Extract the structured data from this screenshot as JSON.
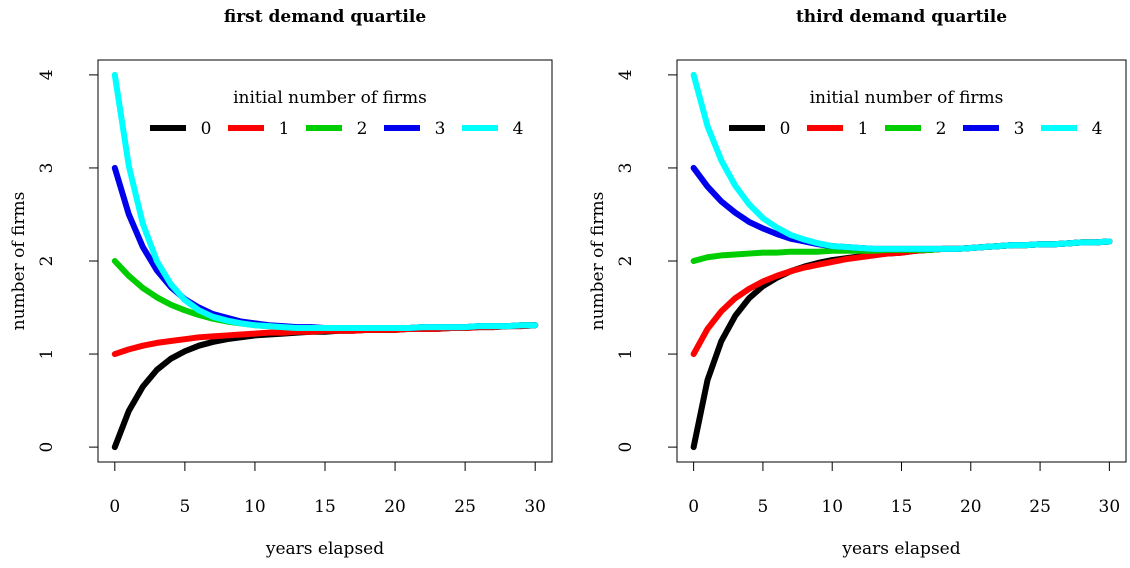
{
  "chart_data": [
    {
      "type": "line",
      "title": "first demand quartile",
      "xlabel": "years elapsed",
      "ylabel": "number of firms",
      "xlim": [
        0,
        30
      ],
      "ylim": [
        0,
        4
      ],
      "xticks": [
        0,
        5,
        10,
        15,
        20,
        25,
        30
      ],
      "yticks": [
        0,
        1,
        2,
        3,
        4
      ],
      "grid": false,
      "legend": {
        "title": "initial number of firms",
        "placement": "top",
        "orientation": "horizontal",
        "entries": [
          "0",
          "1",
          "2",
          "3",
          "4"
        ]
      },
      "x": [
        0,
        1,
        2,
        3,
        4,
        5,
        6,
        7,
        8,
        9,
        10,
        11,
        12,
        13,
        14,
        15,
        16,
        17,
        18,
        19,
        20,
        21,
        22,
        23,
        24,
        25,
        26,
        27,
        28,
        29,
        30
      ],
      "series": [
        {
          "name": "0",
          "color": "#000000",
          "values": [
            0,
            0.39,
            0.65,
            0.83,
            0.95,
            1.03,
            1.09,
            1.13,
            1.16,
            1.18,
            1.2,
            1.21,
            1.22,
            1.23,
            1.24,
            1.24,
            1.25,
            1.25,
            1.26,
            1.26,
            1.26,
            1.27,
            1.27,
            1.27,
            1.28,
            1.28,
            1.29,
            1.29,
            1.3,
            1.3,
            1.31
          ]
        },
        {
          "name": "1",
          "color": "#ff0000",
          "values": [
            1,
            1.05,
            1.09,
            1.12,
            1.14,
            1.16,
            1.18,
            1.19,
            1.2,
            1.21,
            1.22,
            1.23,
            1.23,
            1.24,
            1.24,
            1.25,
            1.25,
            1.25,
            1.26,
            1.26,
            1.26,
            1.27,
            1.27,
            1.27,
            1.28,
            1.28,
            1.29,
            1.29,
            1.3,
            1.3,
            1.31
          ]
        },
        {
          "name": "2",
          "color": "#00cd00",
          "values": [
            2,
            1.84,
            1.71,
            1.61,
            1.53,
            1.47,
            1.42,
            1.38,
            1.35,
            1.33,
            1.31,
            1.3,
            1.29,
            1.28,
            1.28,
            1.28,
            1.28,
            1.28,
            1.28,
            1.28,
            1.28,
            1.28,
            1.29,
            1.29,
            1.29,
            1.29,
            1.3,
            1.3,
            1.3,
            1.31,
            1.31
          ]
        },
        {
          "name": "3",
          "color": "#0000ee",
          "values": [
            3,
            2.5,
            2.15,
            1.9,
            1.72,
            1.59,
            1.5,
            1.43,
            1.39,
            1.35,
            1.33,
            1.31,
            1.3,
            1.29,
            1.29,
            1.28,
            1.28,
            1.28,
            1.28,
            1.28,
            1.28,
            1.28,
            1.29,
            1.29,
            1.29,
            1.29,
            1.3,
            1.3,
            1.3,
            1.31,
            1.31
          ]
        },
        {
          "name": "4",
          "color": "#00ffff",
          "values": [
            4,
            3.02,
            2.4,
            2.0,
            1.75,
            1.58,
            1.47,
            1.4,
            1.36,
            1.33,
            1.31,
            1.3,
            1.29,
            1.28,
            1.28,
            1.28,
            1.28,
            1.28,
            1.28,
            1.28,
            1.28,
            1.28,
            1.29,
            1.29,
            1.29,
            1.29,
            1.3,
            1.3,
            1.3,
            1.31,
            1.31
          ]
        }
      ]
    },
    {
      "type": "line",
      "title": "third demand quartile",
      "xlabel": "years elapsed",
      "ylabel": "number of firms",
      "xlim": [
        0,
        30
      ],
      "ylim": [
        0,
        4
      ],
      "xticks": [
        0,
        5,
        10,
        15,
        20,
        25,
        30
      ],
      "yticks": [
        0,
        1,
        2,
        3,
        4
      ],
      "grid": false,
      "legend": {
        "title": "initial number of firms",
        "placement": "top",
        "orientation": "horizontal",
        "entries": [
          "0",
          "1",
          "2",
          "3",
          "4"
        ]
      },
      "x": [
        0,
        1,
        2,
        3,
        4,
        5,
        6,
        7,
        8,
        9,
        10,
        11,
        12,
        13,
        14,
        15,
        16,
        17,
        18,
        19,
        20,
        21,
        22,
        23,
        24,
        25,
        26,
        27,
        28,
        29,
        30
      ],
      "series": [
        {
          "name": "0",
          "color": "#000000",
          "values": [
            0,
            0.72,
            1.14,
            1.41,
            1.6,
            1.73,
            1.82,
            1.89,
            1.94,
            1.98,
            2.01,
            2.03,
            2.05,
            2.07,
            2.08,
            2.09,
            2.11,
            2.12,
            2.13,
            2.13,
            2.14,
            2.15,
            2.16,
            2.17,
            2.17,
            2.18,
            2.18,
            2.19,
            2.2,
            2.2,
            2.21
          ]
        },
        {
          "name": "1",
          "color": "#ff0000",
          "values": [
            1,
            1.27,
            1.46,
            1.6,
            1.7,
            1.78,
            1.84,
            1.89,
            1.93,
            1.96,
            1.99,
            2.02,
            2.04,
            2.06,
            2.08,
            2.09,
            2.11,
            2.12,
            2.13,
            2.13,
            2.14,
            2.15,
            2.16,
            2.17,
            2.17,
            2.18,
            2.18,
            2.19,
            2.2,
            2.2,
            2.21
          ]
        },
        {
          "name": "2",
          "color": "#00cd00",
          "values": [
            2,
            2.04,
            2.06,
            2.07,
            2.08,
            2.09,
            2.09,
            2.1,
            2.1,
            2.1,
            2.11,
            2.11,
            2.11,
            2.11,
            2.12,
            2.12,
            2.12,
            2.12,
            2.13,
            2.13,
            2.14,
            2.15,
            2.16,
            2.17,
            2.17,
            2.18,
            2.18,
            2.19,
            2.2,
            2.2,
            2.21
          ]
        },
        {
          "name": "3",
          "color": "#0000ee",
          "values": [
            3,
            2.8,
            2.64,
            2.52,
            2.42,
            2.35,
            2.29,
            2.24,
            2.21,
            2.18,
            2.16,
            2.15,
            2.14,
            2.13,
            2.13,
            2.13,
            2.13,
            2.13,
            2.13,
            2.13,
            2.14,
            2.15,
            2.16,
            2.17,
            2.17,
            2.18,
            2.18,
            2.19,
            2.2,
            2.2,
            2.21
          ]
        },
        {
          "name": "4",
          "color": "#00ffff",
          "values": [
            4,
            3.45,
            3.08,
            2.81,
            2.61,
            2.46,
            2.36,
            2.28,
            2.23,
            2.19,
            2.16,
            2.15,
            2.14,
            2.13,
            2.13,
            2.13,
            2.13,
            2.13,
            2.13,
            2.13,
            2.14,
            2.15,
            2.16,
            2.17,
            2.17,
            2.18,
            2.18,
            2.19,
            2.2,
            2.2,
            2.21
          ]
        }
      ]
    }
  ]
}
